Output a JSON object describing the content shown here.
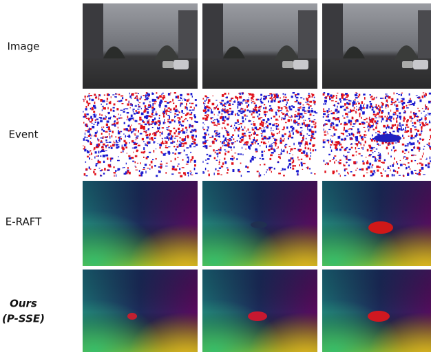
{
  "rows": [
    {
      "label": "Image"
    },
    {
      "label": "Event"
    },
    {
      "label": "E-RAFT"
    },
    {
      "label": "Ours",
      "label_line2": "(P-SSE)"
    }
  ]
}
